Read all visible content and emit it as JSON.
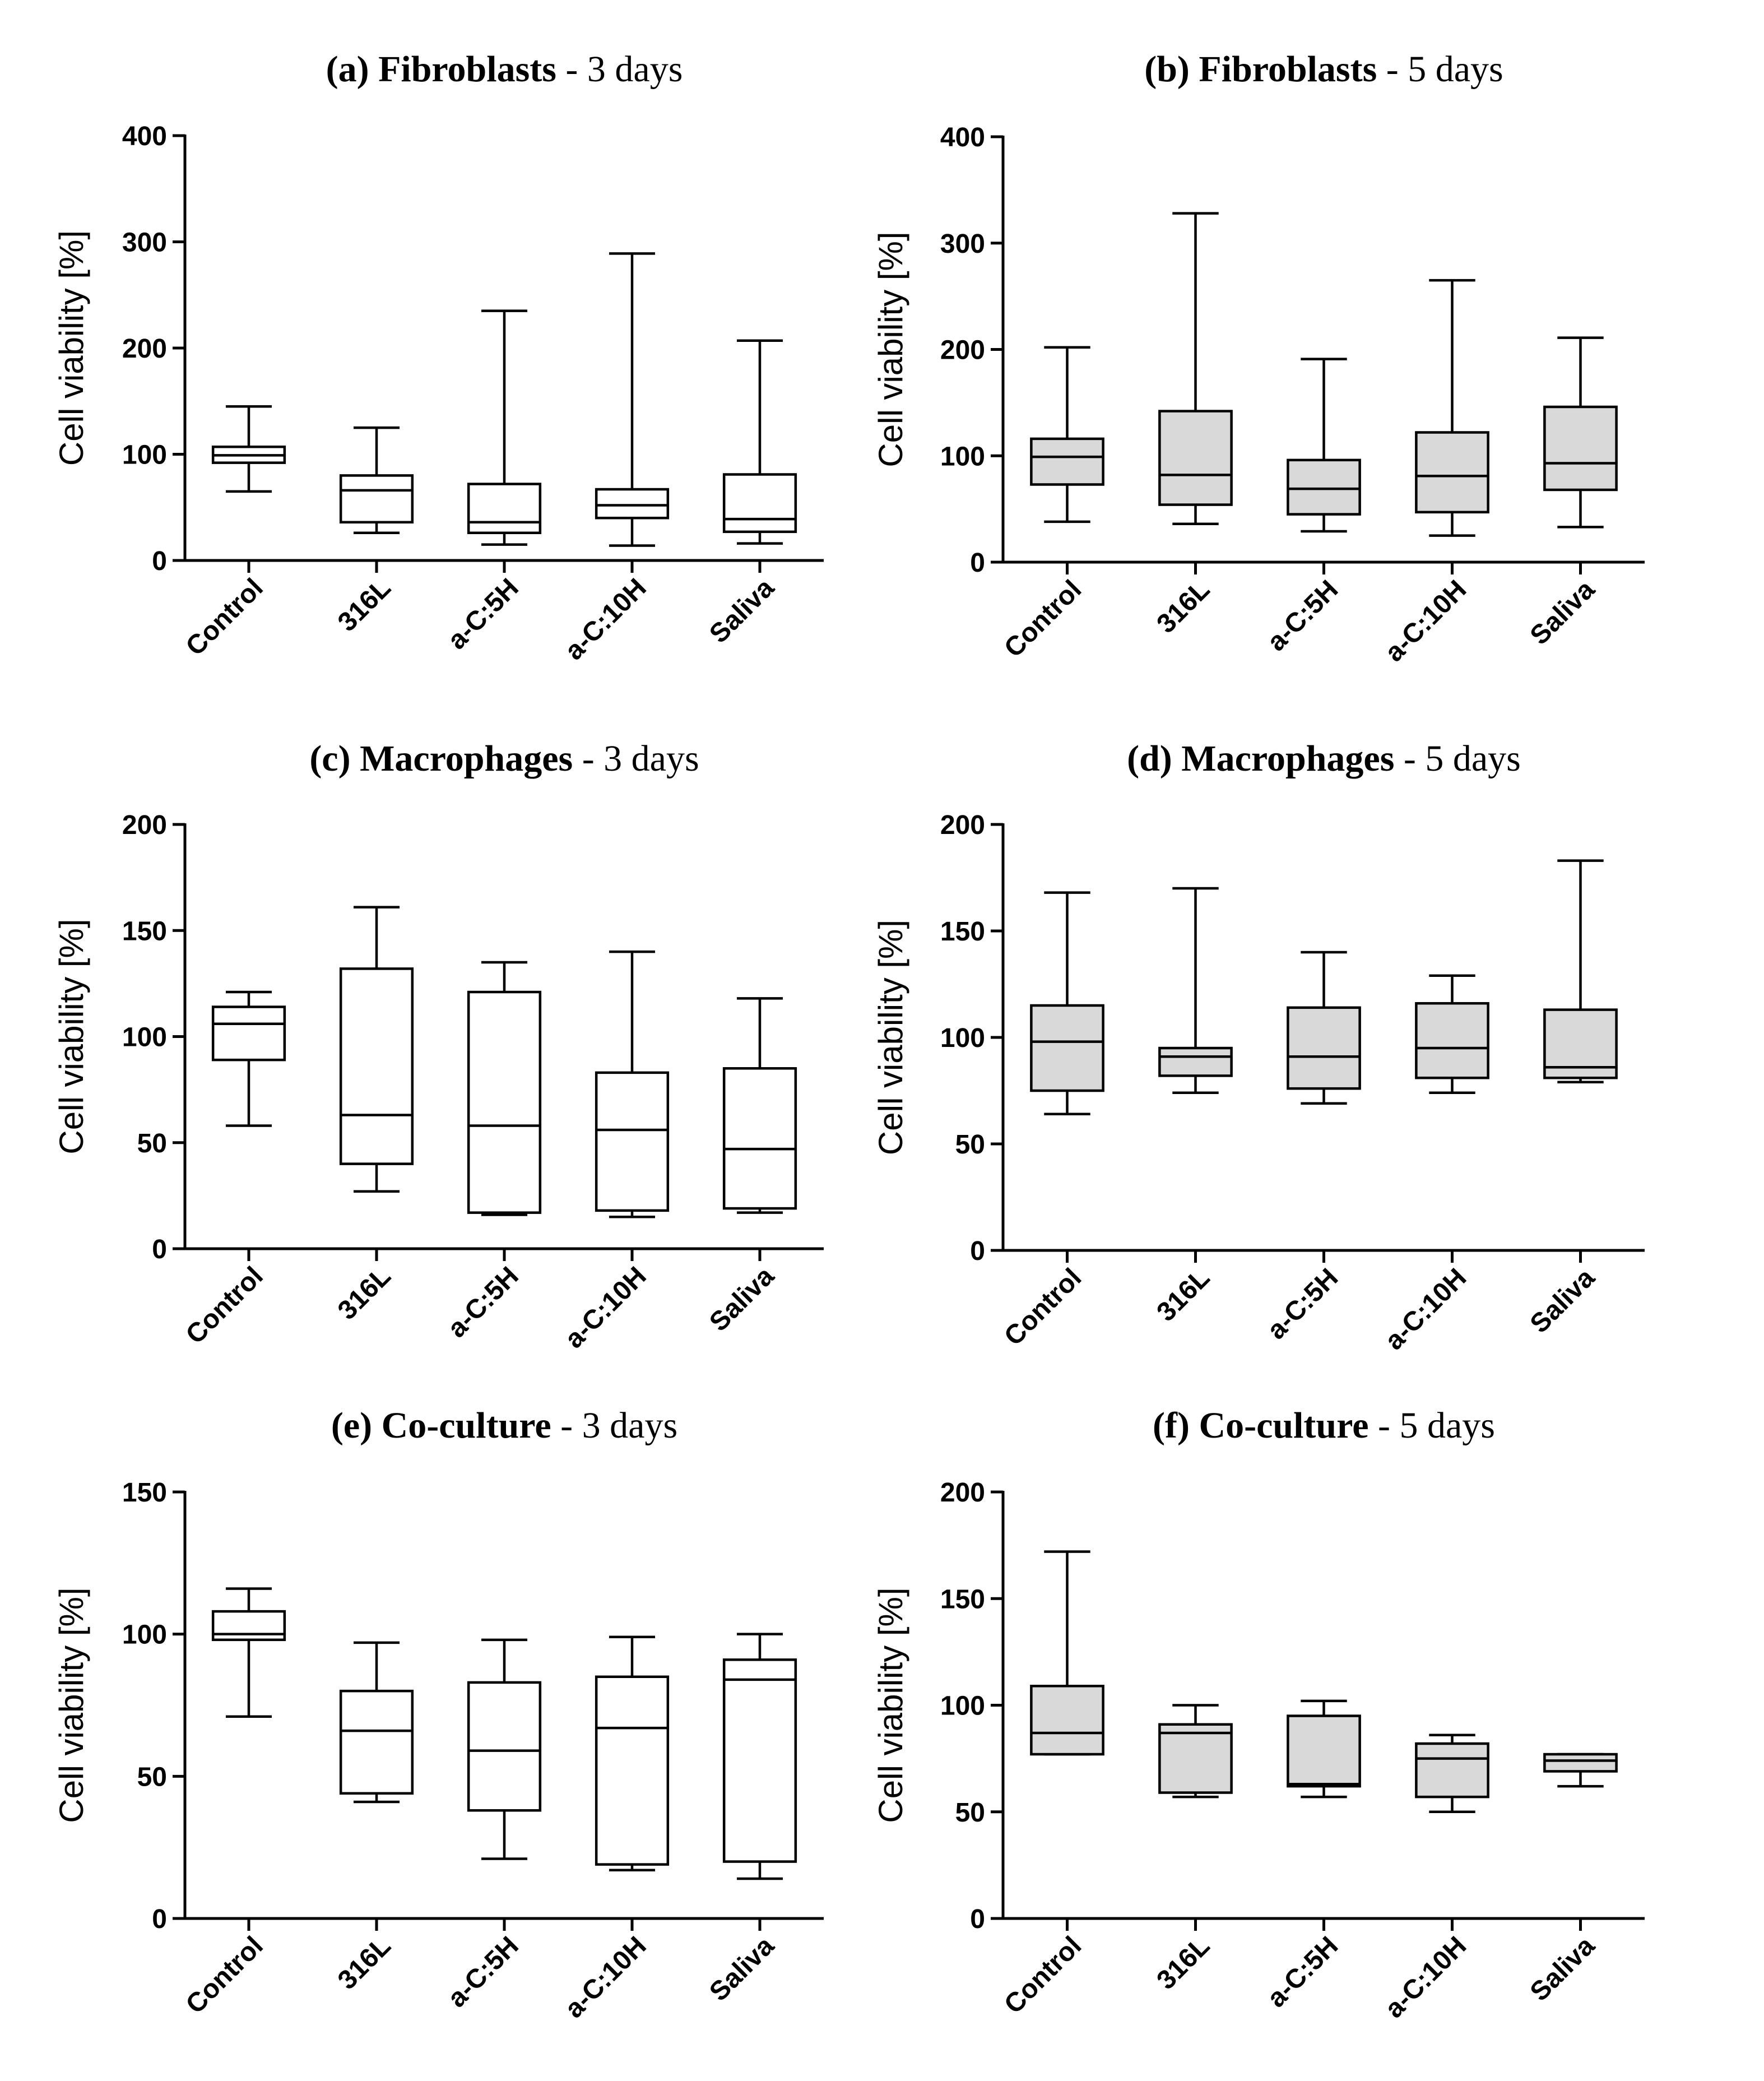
{
  "figure": {
    "categories_note": "shared"
  },
  "chart_data": [
    {
      "type": "box",
      "title_prefix": "(a) ",
      "title_bold": "Fibroblasts",
      "title_suffix": " - 3 days",
      "ylabel": "Cell viability [%]",
      "ylim": [
        0,
        400
      ],
      "yticks": [
        0,
        100,
        200,
        300,
        400
      ],
      "fill": "#ffffff",
      "categories": [
        "Control",
        "316L",
        "a-C:5H",
        "a-C:10H",
        "Saliva"
      ],
      "boxes": [
        {
          "min": 65,
          "q1": 92,
          "median": 99,
          "q3": 107,
          "max": 145
        },
        {
          "min": 26,
          "q1": 36,
          "median": 66,
          "q3": 80,
          "max": 125
        },
        {
          "min": 15,
          "q1": 26,
          "median": 36,
          "q3": 72,
          "max": 235
        },
        {
          "min": 14,
          "q1": 40,
          "median": 52,
          "q3": 67,
          "max": 289
        },
        {
          "min": 16,
          "q1": 27,
          "median": 39,
          "q3": 81,
          "max": 207
        }
      ]
    },
    {
      "type": "box",
      "title_prefix": "(b) ",
      "title_bold": "Fibroblasts",
      "title_suffix": " - 5 days",
      "ylabel": "Cell viability [%]",
      "ylim": [
        0,
        400
      ],
      "yticks": [
        0,
        100,
        200,
        300,
        400
      ],
      "fill": "#d9d9d9",
      "categories": [
        "Control",
        "316L",
        "a-C:5H",
        "a-C:10H",
        "Saliva"
      ],
      "boxes": [
        {
          "min": 38,
          "q1": 73,
          "median": 99,
          "q3": 116,
          "max": 202
        },
        {
          "min": 36,
          "q1": 54,
          "median": 82,
          "q3": 142,
          "max": 328
        },
        {
          "min": 29,
          "q1": 45,
          "median": 69,
          "q3": 96,
          "max": 191
        },
        {
          "min": 25,
          "q1": 47,
          "median": 81,
          "q3": 122,
          "max": 265
        },
        {
          "min": 33,
          "q1": 68,
          "median": 93,
          "q3": 146,
          "max": 211
        }
      ]
    },
    {
      "type": "box",
      "title_prefix": "(c) ",
      "title_bold": "Macrophages",
      "title_suffix": " - 3 days",
      "ylabel": "Cell viability [%]",
      "ylim": [
        0,
        200
      ],
      "yticks": [
        0,
        50,
        100,
        150,
        200
      ],
      "fill": "#ffffff",
      "categories": [
        "Control",
        "316L",
        "a-C:5H",
        "a-C:10H",
        "Saliva"
      ],
      "boxes": [
        {
          "min": 58,
          "q1": 89,
          "median": 106,
          "q3": 114,
          "max": 121
        },
        {
          "min": 27,
          "q1": 40,
          "median": 63,
          "q3": 132,
          "max": 161
        },
        {
          "min": 16,
          "q1": 17,
          "median": 58,
          "q3": 121,
          "max": 135
        },
        {
          "min": 15,
          "q1": 18,
          "median": 56,
          "q3": 83,
          "max": 140
        },
        {
          "min": 17,
          "q1": 19,
          "median": 47,
          "q3": 85,
          "max": 118
        }
      ]
    },
    {
      "type": "box",
      "title_prefix": "(d) ",
      "title_bold": "Macrophages",
      "title_suffix": " - 5 days",
      "ylabel": "Cell viability [%]",
      "ylim": [
        0,
        200
      ],
      "yticks": [
        0,
        50,
        100,
        150,
        200
      ],
      "fill": "#d9d9d9",
      "categories": [
        "Control",
        "316L",
        "a-C:5H",
        "a-C:10H",
        "Saliva"
      ],
      "boxes": [
        {
          "min": 64,
          "q1": 75,
          "median": 98,
          "q3": 115,
          "max": 168
        },
        {
          "min": 74,
          "q1": 82,
          "median": 91,
          "q3": 95,
          "max": 170
        },
        {
          "min": 69,
          "q1": 76,
          "median": 91,
          "q3": 114,
          "max": 140
        },
        {
          "min": 74,
          "q1": 81,
          "median": 95,
          "q3": 116,
          "max": 129
        },
        {
          "min": 79,
          "q1": 81,
          "median": 86,
          "q3": 113,
          "max": 183
        }
      ]
    },
    {
      "type": "box",
      "title_prefix": "(e) ",
      "title_bold": "Co-culture",
      "title_suffix": " - 3 days",
      "ylabel": "Cell viability [%]",
      "ylim": [
        0,
        150
      ],
      "yticks": [
        0,
        50,
        100,
        150
      ],
      "fill": "#ffffff",
      "categories": [
        "Control",
        "316L",
        "a-C:5H",
        "a-C:10H",
        "Saliva"
      ],
      "boxes": [
        {
          "min": 71,
          "q1": 98,
          "median": 100,
          "q3": 108,
          "max": 116
        },
        {
          "min": 41,
          "q1": 44,
          "median": 66,
          "q3": 80,
          "max": 97
        },
        {
          "min": 21,
          "q1": 38,
          "median": 59,
          "q3": 83,
          "max": 98
        },
        {
          "min": 17,
          "q1": 19,
          "median": 67,
          "q3": 85,
          "max": 99
        },
        {
          "min": 14,
          "q1": 20,
          "median": 84,
          "q3": 91,
          "max": 100
        }
      ]
    },
    {
      "type": "box",
      "title_prefix": "(f) ",
      "title_bold": "Co-culture",
      "title_suffix": " - 5 days",
      "ylabel": "Cell viability [%]",
      "ylim": [
        0,
        200
      ],
      "yticks": [
        0,
        50,
        100,
        150,
        200
      ],
      "fill": "#d9d9d9",
      "categories": [
        "Control",
        "316L",
        "a-C:5H",
        "a-C:10H",
        "Saliva"
      ],
      "boxes": [
        {
          "min": 77,
          "q1": 77,
          "median": 87,
          "q3": 109,
          "max": 172
        },
        {
          "min": 57,
          "q1": 59,
          "median": 87,
          "q3": 91,
          "max": 100
        },
        {
          "min": 57,
          "q1": 62,
          "median": 63,
          "q3": 95,
          "max": 102
        },
        {
          "min": 50,
          "q1": 57,
          "median": 75,
          "q3": 82,
          "max": 86
        },
        {
          "min": 62,
          "q1": 69,
          "median": 74,
          "q3": 77,
          "max": 77
        }
      ]
    }
  ]
}
